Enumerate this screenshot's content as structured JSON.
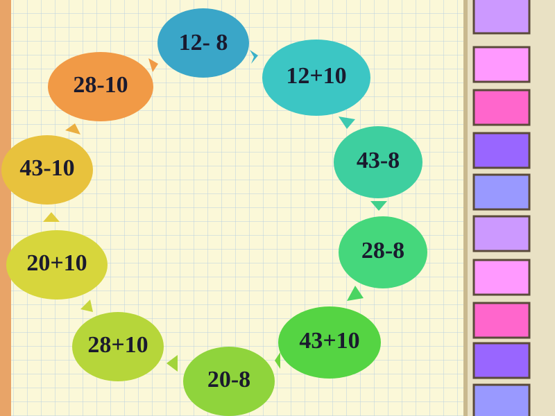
{
  "nodes": [
    {
      "label": "12- 8"
    },
    {
      "label": "12+10"
    },
    {
      "label": "43-8"
    },
    {
      "label": "28-8"
    },
    {
      "label": "43+10"
    },
    {
      "label": "20-8"
    },
    {
      "label": "28+10"
    },
    {
      "label": "20+10"
    },
    {
      "label": "43-10"
    },
    {
      "label": "28-10"
    }
  ]
}
